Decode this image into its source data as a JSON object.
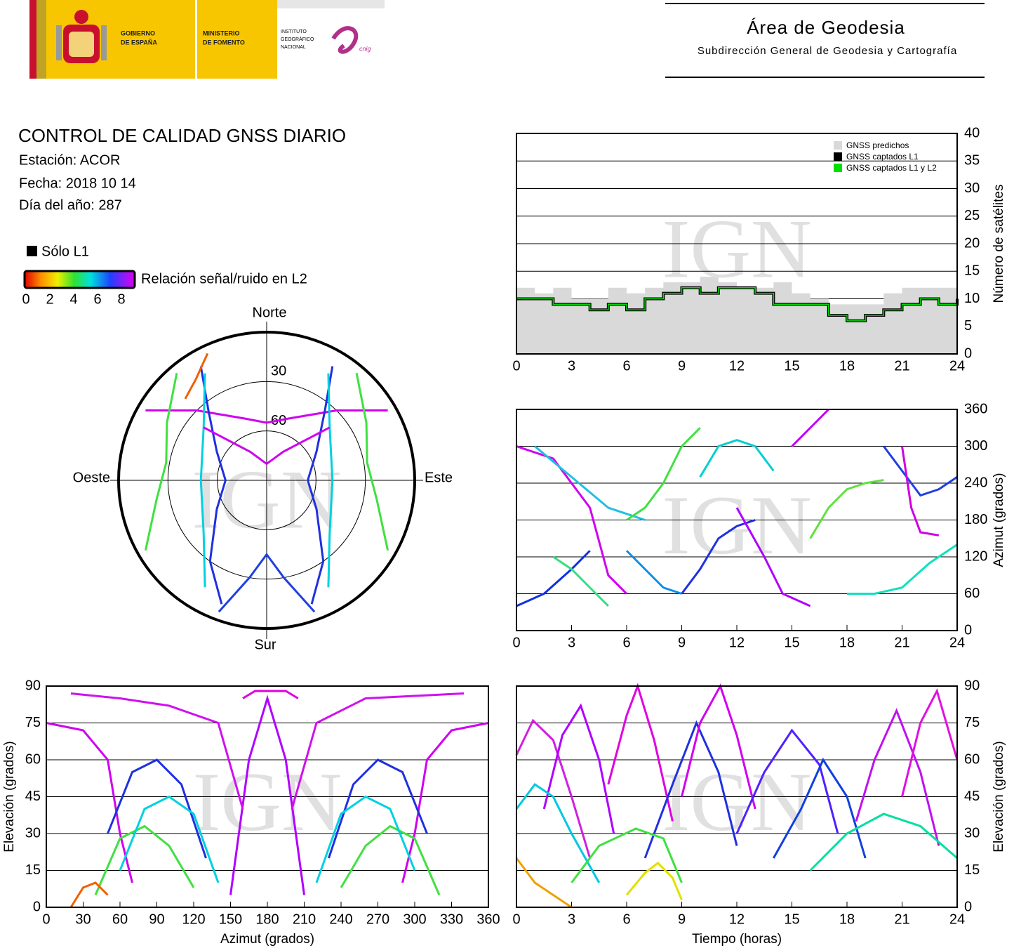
{
  "header": {
    "government": [
      "GOBIERNO",
      "DE ESPAÑA"
    ],
    "ministry": [
      "MINISTERIO",
      "DE FOMENTO"
    ],
    "institute": [
      "INSTITUTO",
      "GEOGRÁFICO",
      "NACIONAL"
    ],
    "cnig": "cnig",
    "area": "Área de Geodesia",
    "subdirection": "Subdirección General de Geodesia y Cartografía"
  },
  "info": {
    "title": "CONTROL DE CALIDAD GNSS DIARIO",
    "station": "Estación: ACOR",
    "date": "Fecha: 2018 10 14",
    "doy": "Día del año: 287"
  },
  "legend": {
    "l1_only": "Sólo L1",
    "snr_label": "Relación señal/ruido en L2",
    "snr_lim": [
      0,
      9
    ],
    "snr_ticks": [
      0,
      2,
      4,
      6,
      8
    ]
  },
  "chart_data": [
    {
      "type": "polar",
      "watermark": "IGN",
      "ylim": [
        0,
        90
      ],
      "yticks": [
        30,
        60
      ],
      "north": "Norte",
      "south": "Sur",
      "east": "Este",
      "west": "Oeste",
      "series": [
        {
          "color": "#d000f0",
          "x": [
            300,
            315,
            340,
            0,
            20,
            45,
            60
          ],
          "values": [
            5,
            30,
            50,
            55,
            50,
            30,
            5
          ]
        },
        {
          "color": "#2030e0",
          "x": [
            330,
            320,
            300,
            270,
            240,
            215,
            200
          ],
          "values": [
            10,
            35,
            55,
            65,
            55,
            30,
            10
          ]
        },
        {
          "color": "#2030e0",
          "x": [
            30,
            40,
            60,
            90,
            120,
            145,
            160
          ],
          "values": [
            10,
            35,
            55,
            65,
            55,
            30,
            10
          ]
        },
        {
          "color": "#40e040",
          "x": [
            320,
            300,
            280,
            260,
            240
          ],
          "values": [
            5,
            20,
            28,
            22,
            5
          ]
        },
        {
          "color": "#40e040",
          "x": [
            40,
            60,
            80,
            100,
            120
          ],
          "values": [
            5,
            20,
            28,
            22,
            5
          ]
        },
        {
          "color": "#00d0e0",
          "x": [
            330,
            310,
            270,
            230,
            210
          ],
          "values": [
            15,
            40,
            50,
            40,
            15
          ]
        },
        {
          "color": "#00d0e0",
          "x": [
            30,
            50,
            90,
            130,
            150
          ],
          "values": [
            15,
            40,
            50,
            40,
            15
          ]
        },
        {
          "color": "#d000f0",
          "x": [
            310,
            330,
            0,
            30,
            50
          ],
          "values": [
            40,
            70,
            80,
            70,
            40
          ]
        },
        {
          "color": "#2040e0",
          "x": [
            200,
            190,
            180,
            170,
            160
          ],
          "values": [
            5,
            30,
            45,
            30,
            5
          ]
        },
        {
          "color": "#f06000",
          "x": [
            335,
            325,
            315
          ],
          "values": [
            5,
            15,
            20
          ]
        }
      ]
    },
    {
      "type": "step",
      "watermark": "IGN",
      "ylabel": "Número de satélites",
      "xlim": [
        0,
        24
      ],
      "ylim": [
        0,
        40
      ],
      "xticks": [
        0,
        3,
        6,
        9,
        12,
        15,
        18,
        21,
        24
      ],
      "yticks": [
        0,
        5,
        10,
        15,
        20,
        25,
        30,
        35,
        40
      ],
      "grid": true,
      "x": [
        0,
        1,
        2,
        3,
        4,
        5,
        6,
        7,
        8,
        9,
        10,
        11,
        12,
        13,
        14,
        15,
        16,
        17,
        18,
        19,
        20,
        21,
        22,
        23,
        24
      ],
      "series": [
        {
          "name": "GNSS predichos",
          "color": "#d9d9d9",
          "fill": true,
          "values": [
            12,
            11,
            12,
            10,
            10,
            12,
            11,
            12,
            13,
            13,
            14,
            13,
            12,
            12,
            13,
            11,
            10,
            9,
            9,
            9,
            11,
            12,
            12,
            12,
            13
          ]
        },
        {
          "name": "GNSS captados L1",
          "color": "#000000",
          "values": [
            10,
            10,
            9,
            9,
            8,
            9,
            8,
            10,
            11,
            12,
            11,
            12,
            12,
            11,
            9,
            9,
            9,
            7,
            6,
            7,
            8,
            9,
            10,
            9,
            10
          ]
        },
        {
          "name": "GNSS captados L1 y L2",
          "color": "#00e000",
          "values": [
            10,
            10,
            9,
            9,
            8,
            9,
            8,
            10,
            11,
            12,
            11,
            12,
            12,
            11,
            9,
            9,
            9,
            7,
            6,
            7,
            8,
            9,
            10,
            9,
            10
          ]
        }
      ]
    },
    {
      "type": "line",
      "watermark": "IGN",
      "ylabel": "Azimut (grados)",
      "xlim": [
        0,
        24
      ],
      "ylim": [
        0,
        360
      ],
      "xticks": [
        0,
        3,
        6,
        9,
        12,
        15,
        18,
        21,
        24
      ],
      "yticks": [
        0,
        60,
        120,
        180,
        240,
        300,
        360
      ],
      "grid": true,
      "series": [
        {
          "color": "#d000f0",
          "x": [
            0,
            2,
            4,
            5,
            6
          ],
          "values": [
            300,
            280,
            200,
            90,
            60
          ]
        },
        {
          "color": "#1030e0",
          "x": [
            0,
            1.5,
            3,
            4
          ],
          "values": [
            40,
            60,
            100,
            130
          ]
        },
        {
          "color": "#20c0e0",
          "x": [
            1,
            3,
            5,
            7
          ],
          "values": [
            300,
            250,
            200,
            180
          ]
        },
        {
          "color": "#40e040",
          "x": [
            6,
            7,
            8,
            9,
            10
          ],
          "values": [
            180,
            200,
            240,
            300,
            330
          ]
        },
        {
          "color": "#2030e0",
          "x": [
            9,
            10,
            11,
            12,
            13
          ],
          "values": [
            60,
            100,
            150,
            170,
            180
          ]
        },
        {
          "color": "#00d0d0",
          "x": [
            10,
            11,
            12,
            13,
            14
          ],
          "values": [
            250,
            300,
            310,
            300,
            260
          ]
        },
        {
          "color": "#b000ff",
          "x": [
            12,
            13.5,
            14.5,
            16
          ],
          "values": [
            200,
            120,
            60,
            40
          ]
        },
        {
          "color": "#c000f0",
          "x": [
            15,
            16,
            17
          ],
          "values": [
            300,
            330,
            360
          ]
        },
        {
          "color": "#60e040",
          "x": [
            16,
            17,
            18,
            19,
            20
          ],
          "values": [
            150,
            200,
            230,
            240,
            245
          ]
        },
        {
          "color": "#10e0c0",
          "x": [
            18,
            19.5,
            21,
            22.5,
            24
          ],
          "values": [
            60,
            60,
            70,
            110,
            140
          ]
        },
        {
          "color": "#2040e0",
          "x": [
            20,
            21,
            22,
            23,
            24
          ],
          "values": [
            300,
            260,
            220,
            230,
            250
          ]
        },
        {
          "color": "#d000e0",
          "x": [
            21,
            21.5,
            22,
            23
          ],
          "values": [
            300,
            200,
            160,
            155
          ]
        },
        {
          "color": "#30e080",
          "x": [
            2,
            3,
            4,
            5
          ],
          "values": [
            120,
            100,
            70,
            40
          ]
        },
        {
          "color": "#0090f0",
          "x": [
            6,
            7,
            8,
            9
          ],
          "values": [
            130,
            100,
            70,
            60
          ]
        }
      ]
    },
    {
      "type": "line",
      "watermark": "IGN",
      "xlabel": "Azimut (grados)",
      "ylabel": "Elevación (grados)",
      "xlim": [
        0,
        360
      ],
      "ylim": [
        0,
        90
      ],
      "xticks": [
        0,
        30,
        60,
        90,
        120,
        150,
        180,
        210,
        240,
        270,
        300,
        330,
        360
      ],
      "yticks": [
        0,
        15,
        30,
        45,
        60,
        75,
        90
      ],
      "grid": true,
      "series": [
        {
          "color": "#d000f0",
          "x": [
            0,
            30,
            50,
            60,
            70
          ],
          "values": [
            75,
            72,
            60,
            30,
            10
          ]
        },
        {
          "color": "#d000f0",
          "x": [
            290,
            300,
            310,
            330,
            360
          ],
          "values": [
            10,
            30,
            60,
            72,
            75
          ]
        },
        {
          "color": "#40e040",
          "x": [
            40,
            60,
            80,
            100,
            120
          ],
          "values": [
            5,
            28,
            33,
            25,
            8
          ]
        },
        {
          "color": "#40e040",
          "x": [
            240,
            260,
            280,
            300,
            320
          ],
          "values": [
            8,
            25,
            33,
            28,
            5
          ]
        },
        {
          "color": "#2030e0",
          "x": [
            50,
            70,
            90,
            110,
            130
          ],
          "values": [
            30,
            55,
            60,
            50,
            20
          ]
        },
        {
          "color": "#2030e0",
          "x": [
            230,
            250,
            270,
            290,
            310
          ],
          "values": [
            20,
            50,
            60,
            55,
            30
          ]
        },
        {
          "color": "#b000ff",
          "x": [
            150,
            165,
            180,
            195,
            210
          ],
          "values": [
            5,
            60,
            85,
            60,
            5
          ]
        },
        {
          "color": "#e000e0",
          "x": [
            160,
            170,
            182,
            195,
            205
          ],
          "values": [
            85,
            88,
            88,
            88,
            85
          ]
        },
        {
          "color": "#d010f0",
          "x": [
            20,
            60,
            100,
            140,
            160
          ],
          "values": [
            87,
            85,
            82,
            75,
            40
          ]
        },
        {
          "color": "#d010f0",
          "x": [
            200,
            220,
            260,
            300,
            340
          ],
          "values": [
            40,
            75,
            85,
            86,
            87
          ]
        },
        {
          "color": "#00d0e0",
          "x": [
            60,
            80,
            100,
            120,
            140
          ],
          "values": [
            15,
            40,
            45,
            38,
            10
          ]
        },
        {
          "color": "#00d0e0",
          "x": [
            220,
            240,
            260,
            280,
            300
          ],
          "values": [
            10,
            38,
            45,
            40,
            15
          ]
        },
        {
          "color": "#f06000",
          "x": [
            20,
            30,
            40,
            50
          ],
          "values": [
            0,
            8,
            10,
            5
          ]
        }
      ]
    },
    {
      "type": "line",
      "watermark": "IGN",
      "xlabel": "Tiempo (horas)",
      "ylabel": "Elevación (grados)",
      "xlim": [
        0,
        24
      ],
      "ylim": [
        0,
        90
      ],
      "xticks": [
        0,
        3,
        6,
        9,
        12,
        15,
        18,
        21,
        24
      ],
      "yticks": [
        0,
        15,
        30,
        45,
        60,
        75,
        90
      ],
      "grid": true,
      "series": [
        {
          "color": "#d020e0",
          "x": [
            0,
            0.9,
            2,
            3,
            4
          ],
          "values": [
            62,
            76,
            68,
            45,
            20
          ]
        },
        {
          "color": "#b000ff",
          "x": [
            1.5,
            2.5,
            3.5,
            4.5,
            5.3
          ],
          "values": [
            40,
            70,
            82,
            60,
            30
          ]
        },
        {
          "color": "#e000e0",
          "x": [
            5,
            6,
            6.6,
            7.5,
            8.5
          ],
          "values": [
            50,
            78,
            90,
            68,
            35
          ]
        },
        {
          "color": "#2030e0",
          "x": [
            7,
            8.5,
            9.8,
            11,
            12
          ],
          "values": [
            20,
            50,
            75,
            55,
            25
          ]
        },
        {
          "color": "#d000f0",
          "x": [
            9,
            10,
            11.1,
            12,
            13
          ],
          "values": [
            45,
            75,
            90,
            70,
            40
          ]
        },
        {
          "color": "#5020ff",
          "x": [
            12,
            13.5,
            15,
            16.5,
            17.5
          ],
          "values": [
            30,
            55,
            72,
            58,
            30
          ]
        },
        {
          "color": "#00c8e0",
          "x": [
            0,
            1,
            2,
            3,
            4.5
          ],
          "values": [
            40,
            50,
            45,
            30,
            10
          ]
        },
        {
          "color": "#1040e0",
          "x": [
            14,
            15.5,
            16.7,
            18,
            19
          ],
          "values": [
            20,
            40,
            60,
            45,
            20
          ]
        },
        {
          "color": "#c010f0",
          "x": [
            18.5,
            19.5,
            20.7,
            22,
            23
          ],
          "values": [
            35,
            60,
            80,
            55,
            25
          ]
        },
        {
          "color": "#e010e0",
          "x": [
            21,
            22,
            22.9,
            24
          ],
          "values": [
            45,
            75,
            88,
            60
          ]
        },
        {
          "color": "#00e0a0",
          "x": [
            16,
            18,
            20,
            22,
            24
          ],
          "values": [
            15,
            30,
            38,
            33,
            20
          ]
        },
        {
          "color": "#40e040",
          "x": [
            3,
            4.5,
            6.5,
            8,
            9
          ],
          "values": [
            10,
            25,
            32,
            28,
            10
          ]
        },
        {
          "color": "#f0a000",
          "x": [
            0,
            1,
            2,
            3
          ],
          "values": [
            20,
            10,
            5,
            0
          ]
        },
        {
          "color": "#e0e000",
          "x": [
            6,
            7,
            7.7,
            8.5,
            9
          ],
          "values": [
            5,
            14,
            18,
            12,
            3
          ]
        }
      ]
    }
  ]
}
